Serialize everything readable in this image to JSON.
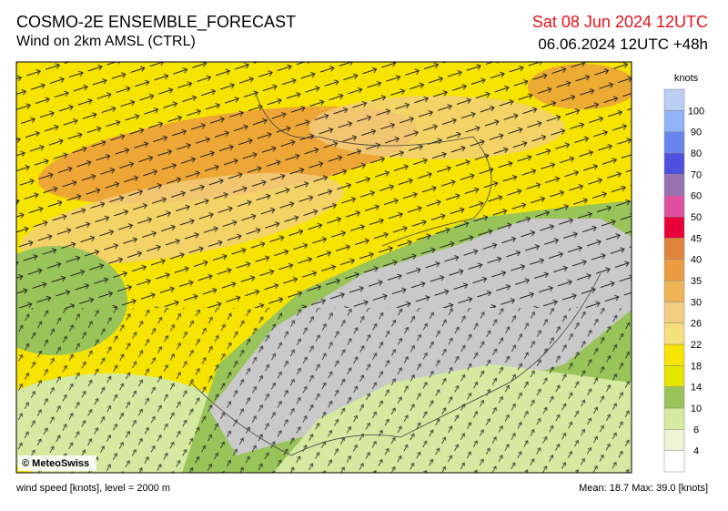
{
  "header": {
    "title": "COSMO-2E ENSEMBLE_FORECAST",
    "subtitle": "Wind on 2km AMSL (CTRL)",
    "valid_time": "Sat 08 Jun 2024 12UTC",
    "run": "06.06.2024 12UTC +48h"
  },
  "legend": {
    "unit": "knots",
    "labels": [
      4,
      6,
      10,
      14,
      18,
      22,
      26,
      30,
      35,
      40,
      45,
      50,
      60,
      70,
      80,
      90,
      100
    ],
    "colors": [
      "#ffffff",
      "#eef5d6",
      "#d6e9a0",
      "#99c45a",
      "#e4e600",
      "#f7e400",
      "#f6e07c",
      "#f3cd80",
      "#efb455",
      "#ec9c40",
      "#e0843c",
      "#e8003a",
      "#e050a0",
      "#9a72b2",
      "#4f4fe0",
      "#6a84ee",
      "#92b4f6",
      "#bccdf6"
    ]
  },
  "map": {
    "credit": "© MeteoSwiss"
  },
  "footer": {
    "left": "wind speed [knots], level = 2000 m",
    "right": "Mean:  18.7 Max:  39.0 [knots]"
  }
}
